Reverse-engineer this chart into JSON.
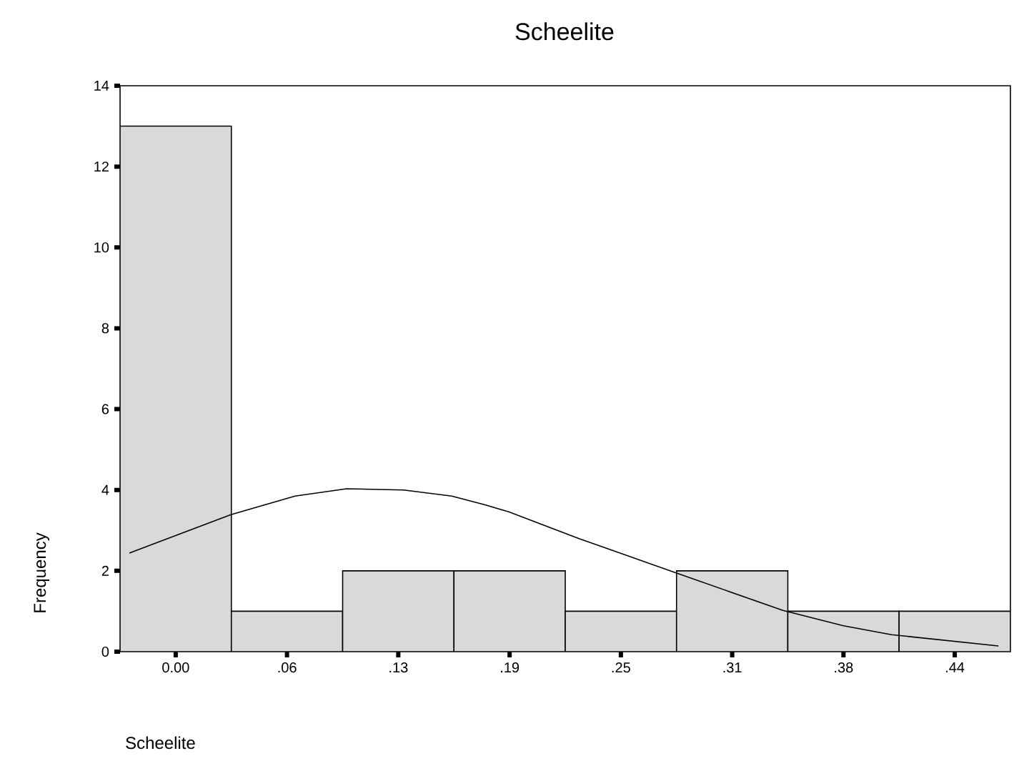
{
  "chart_data": {
    "type": "histogram",
    "title": "Scheelite",
    "xlabel": "Scheelite",
    "ylabel": "Frequency",
    "xlim": [
      -0.03125,
      0.46875
    ],
    "ylim": [
      0,
      14
    ],
    "xticks": [
      {
        "value": 0,
        "label": "0.00"
      },
      {
        "value": 0.0625,
        "label": ".06"
      },
      {
        "value": 0.125,
        "label": ".13"
      },
      {
        "value": 0.1875,
        "label": ".19"
      },
      {
        "value": 0.25,
        "label": ".25"
      },
      {
        "value": 0.3125,
        "label": ".31"
      },
      {
        "value": 0.375,
        "label": ".38"
      },
      {
        "value": 0.4375,
        "label": ".44"
      }
    ],
    "yticks": [
      0,
      2,
      4,
      6,
      8,
      10,
      12,
      14
    ],
    "series": [
      {
        "color": "#d9d9d9",
        "bins": [
          -0.03125,
          0.03125,
          0.09375,
          0.15625,
          0.21875,
          0.28125,
          0.34375,
          0.40625,
          0.46875
        ],
        "values": [
          13,
          1,
          2,
          2,
          1,
          2,
          1,
          1
        ]
      },
      {
        "type": "line",
        "color": "#000000",
        "marker": "none",
        "line_style": "solid",
        "x": [
          -0.026,
          0.031,
          0.067,
          0.096,
          0.128,
          0.155,
          0.173,
          0.187,
          0.227,
          0.279,
          0.341,
          0.375,
          0.402,
          0.462
        ],
        "values": [
          2.44,
          3.39,
          3.85,
          4.03,
          4.0,
          3.85,
          3.64,
          3.46,
          2.79,
          1.98,
          1.02,
          0.64,
          0.42,
          0.14
        ]
      }
    ]
  }
}
